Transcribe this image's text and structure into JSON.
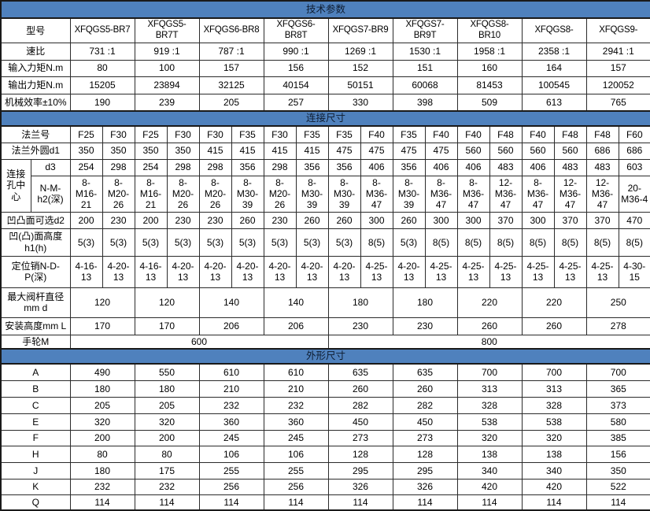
{
  "rows": [
    {
      "kind": "section",
      "text": "技术参数"
    },
    {
      "kind": "wide",
      "label": "型号",
      "values": [
        "XFQGS5-BR7",
        "XFQGS5-BR7T",
        "XFQGS6-BR8",
        "XFQGS6-BR8T",
        "XFQGS7-BR9",
        "XFQGS7-BR9T",
        "XFQGS8-BR10",
        "XFQGS8-",
        "XFQGS9-"
      ]
    },
    {
      "kind": "wide",
      "label": "速比",
      "values": [
        "731 :1",
        "919 :1",
        "787 :1",
        "990 :1",
        "1269 :1",
        "1530 :1",
        "1958 :1",
        "2358 :1",
        "2941 :1"
      ]
    },
    {
      "kind": "wide",
      "label": "输入力矩N.m",
      "values": [
        "80",
        "100",
        "157",
        "156",
        "152",
        "151",
        "160",
        "164",
        "157"
      ]
    },
    {
      "kind": "wide",
      "label": "输出力矩N.m",
      "values": [
        "15205",
        "23894",
        "32125",
        "40154",
        "50151",
        "60068",
        "81453",
        "100545",
        "120052"
      ]
    },
    {
      "kind": "wide",
      "label": "机械效率±10%",
      "values": [
        "190",
        "239",
        "205",
        "257",
        "330",
        "398",
        "509",
        "613",
        "765"
      ]
    },
    {
      "kind": "section",
      "text": "连接尺寸"
    },
    {
      "kind": "narrow",
      "label": "法兰号",
      "values": [
        "F25",
        "F30",
        "F25",
        "F30",
        "F30",
        "F35",
        "F30",
        "F35",
        "F35",
        "F40",
        "F35",
        "F40",
        "F40",
        "F48",
        "F40",
        "F48",
        "F48",
        "F60"
      ]
    },
    {
      "kind": "narrow",
      "label": "法兰外圆d1",
      "values": [
        "350",
        "350",
        "350",
        "350",
        "415",
        "415",
        "415",
        "415",
        "475",
        "475",
        "475",
        "475",
        "560",
        "560",
        "560",
        "560",
        "686",
        "686"
      ]
    },
    {
      "kind": "narrow2a",
      "label_group": "连接孔中心",
      "label": "d3",
      "values": [
        "254",
        "298",
        "254",
        "298",
        "298",
        "356",
        "298",
        "356",
        "356",
        "406",
        "356",
        "406",
        "406",
        "483",
        "406",
        "483",
        "483",
        "603"
      ]
    },
    {
      "kind": "narrow2b",
      "label": "N-M-h2(深)",
      "values": [
        "8-M16-21",
        "8-M20-26",
        "8-M16-21",
        "8-M20-26",
        "8-M20-26",
        "8-M30-39",
        "8-M20-26",
        "8-M30-39",
        "8-M30-39",
        "8-M36-47",
        "8-M30-39",
        "8-M36-47",
        "8-M36-47",
        "12-M36-47",
        "8-M36-47",
        "12-M36-47",
        "12-M36-47",
        "20-M36-4"
      ]
    },
    {
      "kind": "narrow",
      "label": "凹凸面可选d2",
      "values": [
        "200",
        "230",
        "200",
        "230",
        "230",
        "260",
        "230",
        "260",
        "260",
        "300",
        "260",
        "300",
        "300",
        "370",
        "300",
        "370",
        "370",
        "470"
      ]
    },
    {
      "kind": "narrow",
      "label": "凹(凸)面高度h1(h)",
      "values": [
        "5(3)",
        "5(3)",
        "5(3)",
        "5(3)",
        "5(3)",
        "5(3)",
        "5(3)",
        "5(3)",
        "5(3)",
        "8(5)",
        "5(3)",
        "8(5)",
        "8(5)",
        "8(5)",
        "8(5)",
        "8(5)",
        "8(5)",
        "8(5)"
      ]
    },
    {
      "kind": "narrow",
      "label": "定位销N-D-P(深)",
      "values": [
        "4-16-13",
        "4-20-13",
        "4-16-13",
        "4-20-13",
        "4-20-13",
        "4-20-13",
        "4-20-13",
        "4-20-13",
        "4-20-13",
        "4-25-13",
        "4-20-13",
        "4-25-13",
        "4-25-13",
        "4-25-13",
        "4-25-13",
        "4-25-13",
        "4-25-13",
        "4-30-15"
      ]
    },
    {
      "kind": "wide",
      "label": "最大阀杆直径mm d",
      "values": [
        "120",
        "120",
        "140",
        "140",
        "180",
        "180",
        "220",
        "220",
        "250"
      ]
    },
    {
      "kind": "wide",
      "label": "安装高度mm L",
      "values": [
        "170",
        "170",
        "206",
        "206",
        "230",
        "230",
        "260",
        "260",
        "278"
      ]
    },
    {
      "kind": "span",
      "label": "手轮M",
      "cells": [
        {
          "text": "600",
          "span": 8
        },
        {
          "text": "800",
          "span": 10
        }
      ]
    },
    {
      "kind": "section",
      "text": "外形尺寸"
    },
    {
      "kind": "wide",
      "label": "A",
      "values": [
        "490",
        "550",
        "610",
        "610",
        "635",
        "635",
        "700",
        "700",
        "700"
      ]
    },
    {
      "kind": "wide",
      "label": "B",
      "values": [
        "180",
        "180",
        "210",
        "210",
        "260",
        "260",
        "313",
        "313",
        "365"
      ]
    },
    {
      "kind": "wide",
      "label": "C",
      "values": [
        "205",
        "205",
        "232",
        "232",
        "282",
        "282",
        "328",
        "328",
        "373"
      ]
    },
    {
      "kind": "wide",
      "label": "E",
      "values": [
        "320",
        "320",
        "360",
        "360",
        "450",
        "450",
        "538",
        "538",
        "580"
      ]
    },
    {
      "kind": "wide",
      "label": "F",
      "values": [
        "200",
        "200",
        "245",
        "245",
        "273",
        "273",
        "320",
        "320",
        "385"
      ]
    },
    {
      "kind": "wide",
      "label": "H",
      "values": [
        "80",
        "80",
        "106",
        "106",
        "128",
        "128",
        "138",
        "138",
        "156"
      ]
    },
    {
      "kind": "wide",
      "label": "J",
      "values": [
        "180",
        "175",
        "255",
        "255",
        "295",
        "295",
        "340",
        "340",
        "350"
      ]
    },
    {
      "kind": "wide",
      "label": "K",
      "values": [
        "232",
        "232",
        "256",
        "256",
        "326",
        "326",
        "420",
        "420",
        "522"
      ]
    },
    {
      "kind": "wide",
      "label": "Q",
      "values": [
        "114",
        "114",
        "114",
        "114",
        "114",
        "114",
        "114",
        "114",
        "114"
      ]
    }
  ],
  "colors": {
    "section_bar": "#4f81bd",
    "border": "#1a1a1a",
    "text": "#000000"
  }
}
